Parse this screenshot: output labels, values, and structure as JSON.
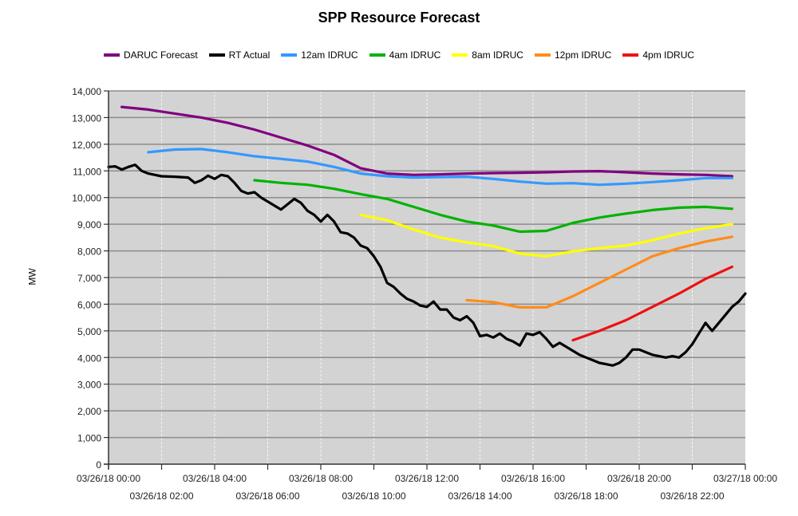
{
  "chart_data": {
    "type": "line",
    "title": "SPP Resource Forecast",
    "xlabel": "",
    "ylabel": "MW",
    "xlim": [
      0,
      24
    ],
    "ylim": [
      0,
      14000
    ],
    "grid": true,
    "legend_position": "top",
    "y_ticks": [
      0,
      1000,
      2000,
      3000,
      4000,
      5000,
      6000,
      7000,
      8000,
      9000,
      10000,
      11000,
      12000,
      13000,
      14000
    ],
    "y_tick_labels": [
      "0",
      "1,000",
      "2,000",
      "3,000",
      "4,000",
      "5,000",
      "6,000",
      "7,000",
      "8,000",
      "9,000",
      "10,000",
      "11,000",
      "12,000",
      "13,000",
      "14,000"
    ],
    "x_ticks": [
      0,
      2,
      4,
      6,
      8,
      10,
      12,
      14,
      16,
      18,
      20,
      22,
      24
    ],
    "x_tick_labels": [
      "03/26/18 00:00",
      "03/26/18 02:00",
      "03/26/18 04:00",
      "03/26/18 06:00",
      "03/26/18 08:00",
      "03/26/18 10:00",
      "03/26/18 12:00",
      "03/26/18 14:00",
      "03/26/18 16:00",
      "03/26/18 18:00",
      "03/26/18 20:00",
      "03/26/18 22:00",
      "03/27/18 00:00"
    ],
    "x_unit": "hours since 03/26/18 00:00",
    "series": [
      {
        "name": "DARUC Forecast",
        "color": "#800080",
        "x": [
          0.5,
          1.5,
          2.5,
          3.5,
          4.5,
          5.5,
          6.5,
          7.5,
          8.5,
          9.5,
          10.5,
          11.5,
          12.5,
          13.5,
          14.5,
          15.5,
          16.5,
          17.5,
          18.5,
          19.5,
          20.5,
          21.5,
          22.5,
          23.5
        ],
        "y": [
          13400,
          13300,
          13150,
          13000,
          12800,
          12550,
          12250,
          11950,
          11600,
          11100,
          10900,
          10850,
          10870,
          10900,
          10920,
          10930,
          10950,
          10980,
          10990,
          10950,
          10900,
          10870,
          10850,
          10800
        ]
      },
      {
        "name": "RT Actual",
        "color": "#000000",
        "x": [
          0,
          0.25,
          0.5,
          0.75,
          1.0,
          1.25,
          1.5,
          1.75,
          2.0,
          2.5,
          3.0,
          3.25,
          3.5,
          3.75,
          4.0,
          4.25,
          4.5,
          4.75,
          5.0,
          5.25,
          5.5,
          5.75,
          6.0,
          6.25,
          6.5,
          7.0,
          7.25,
          7.5,
          7.75,
          8.0,
          8.25,
          8.5,
          8.75,
          9.0,
          9.25,
          9.5,
          9.75,
          10.0,
          10.25,
          10.5,
          10.75,
          11.0,
          11.25,
          11.5,
          11.75,
          12.0,
          12.25,
          12.5,
          12.75,
          13.0,
          13.25,
          13.5,
          13.75,
          14.0,
          14.25,
          14.5,
          14.75,
          15.0,
          15.25,
          15.5,
          15.75,
          16.0,
          16.25,
          16.5,
          16.75,
          17.0,
          17.25,
          17.5,
          17.75,
          18.0,
          18.25,
          18.5,
          18.75,
          19.0,
          19.25,
          19.5,
          19.75,
          20.0,
          20.25,
          20.5,
          20.75,
          21.0,
          21.25,
          21.5,
          21.75,
          22.0,
          22.25,
          22.5,
          22.75,
          23.0,
          23.25,
          23.5,
          23.75,
          24.0
        ],
        "y": [
          11150,
          11170,
          11050,
          11150,
          11230,
          11000,
          10900,
          10850,
          10800,
          10780,
          10750,
          10550,
          10650,
          10820,
          10700,
          10850,
          10800,
          10550,
          10250,
          10150,
          10200,
          10000,
          9850,
          9700,
          9550,
          9950,
          9800,
          9500,
          9350,
          9100,
          9350,
          9100,
          8700,
          8650,
          8500,
          8200,
          8100,
          7800,
          7400,
          6800,
          6650,
          6400,
          6200,
          6100,
          5950,
          5900,
          6100,
          5800,
          5800,
          5500,
          5400,
          5550,
          5300,
          4800,
          4850,
          4750,
          4900,
          4700,
          4600,
          4450,
          4900,
          4850,
          4950,
          4700,
          4400,
          4550,
          4400,
          4250,
          4100,
          4000,
          3900,
          3800,
          3750,
          3700,
          3800,
          4000,
          4300,
          4300,
          4200,
          4100,
          4050,
          4000,
          4050,
          4000,
          4200,
          4500,
          4900,
          5300,
          5000,
          5300,
          5600,
          5900,
          6100,
          6400
        ]
      },
      {
        "name": "12am IDRUC",
        "color": "#3399ff",
        "x": [
          1.5,
          2.5,
          3.5,
          4.5,
          5.5,
          6.5,
          7.5,
          8.5,
          9.5,
          10.5,
          11.5,
          12.5,
          13.5,
          14.5,
          15.5,
          16.5,
          17.5,
          18.5,
          19.5,
          20.5,
          21.5,
          22.5,
          23.5
        ],
        "y": [
          11700,
          11800,
          11820,
          11700,
          11550,
          11450,
          11350,
          11150,
          10900,
          10800,
          10750,
          10770,
          10780,
          10700,
          10600,
          10520,
          10540,
          10480,
          10520,
          10580,
          10650,
          10730,
          10730
        ]
      },
      {
        "name": "4am IDRUC",
        "color": "#00b300",
        "x": [
          5.5,
          6.5,
          7.5,
          8.5,
          9.5,
          10.5,
          11.5,
          12.5,
          13.5,
          14.5,
          15.5,
          16.5,
          17.5,
          18.5,
          19.5,
          20.5,
          21.5,
          22.5,
          23.5
        ],
        "y": [
          10650,
          10550,
          10480,
          10330,
          10130,
          9950,
          9650,
          9350,
          9100,
          8950,
          8720,
          8750,
          9050,
          9250,
          9400,
          9530,
          9620,
          9650,
          9580
        ]
      },
      {
        "name": "8am IDRUC",
        "color": "#ffff00",
        "x": [
          9.5,
          10.5,
          11.5,
          12.5,
          13.5,
          14.5,
          15.5,
          16.5,
          17.5,
          18.5,
          19.5,
          20.5,
          21.5,
          22.5,
          23.5
        ],
        "y": [
          9350,
          9150,
          8800,
          8500,
          8320,
          8180,
          7900,
          7800,
          7980,
          8100,
          8200,
          8400,
          8650,
          8850,
          9000
        ]
      },
      {
        "name": "12pm IDRUC",
        "color": "#ff8c1a",
        "x": [
          13.5,
          14.5,
          15.5,
          16.5,
          17.5,
          18.5,
          19.5,
          20.5,
          21.5,
          22.5,
          23.5
        ],
        "y": [
          6150,
          6080,
          5880,
          5880,
          6300,
          6800,
          7300,
          7800,
          8100,
          8350,
          8530
        ]
      },
      {
        "name": "4pm IDRUC",
        "color": "#ee1111",
        "x": [
          17.5,
          18.5,
          19.5,
          20.5,
          21.5,
          22.5,
          23.5
        ],
        "y": [
          4650,
          5000,
          5400,
          5900,
          6400,
          6950,
          7400
        ]
      }
    ]
  }
}
